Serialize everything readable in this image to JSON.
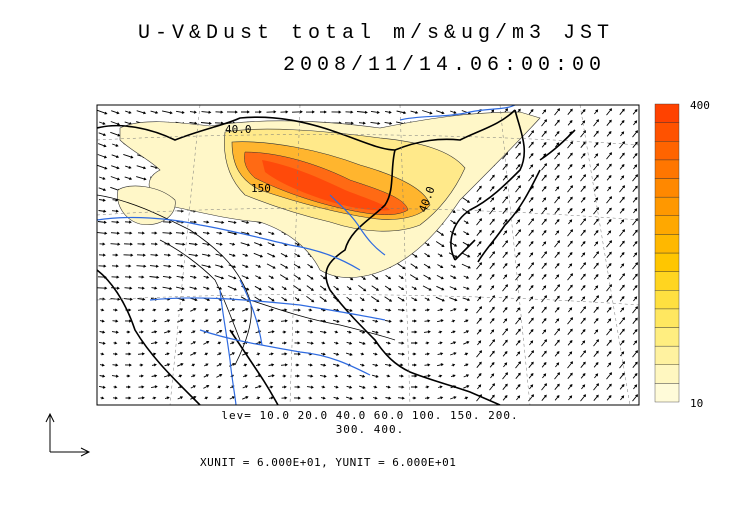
{
  "header": {
    "title": "U-V&Dust total m/s&ug/m3 JST",
    "datetime": "2008/11/14.06:00:00"
  },
  "map": {
    "contour_labels": [
      "40.0",
      "150",
      "40.0"
    ]
  },
  "colorbar": {
    "max_label": "400",
    "min_label": "10",
    "colors": [
      "#fffbd9",
      "#fff7c0",
      "#fff2a0",
      "#ffee80",
      "#ffe760",
      "#ffe040",
      "#ffd520",
      "#ffc600",
      "#ffb800",
      "#ffa800",
      "#ff9800",
      "#ff8800",
      "#ff7600",
      "#ff6400",
      "#ff5200",
      "#ff4200"
    ]
  },
  "footer": {
    "levels_line1": "lev= 10.0 20.0 40.0 60.0 100. 150. 200.",
    "levels_line2": "300. 400.",
    "units": "XUNIT = 6.000E+01, YUNIT = 6.000E+01"
  }
}
